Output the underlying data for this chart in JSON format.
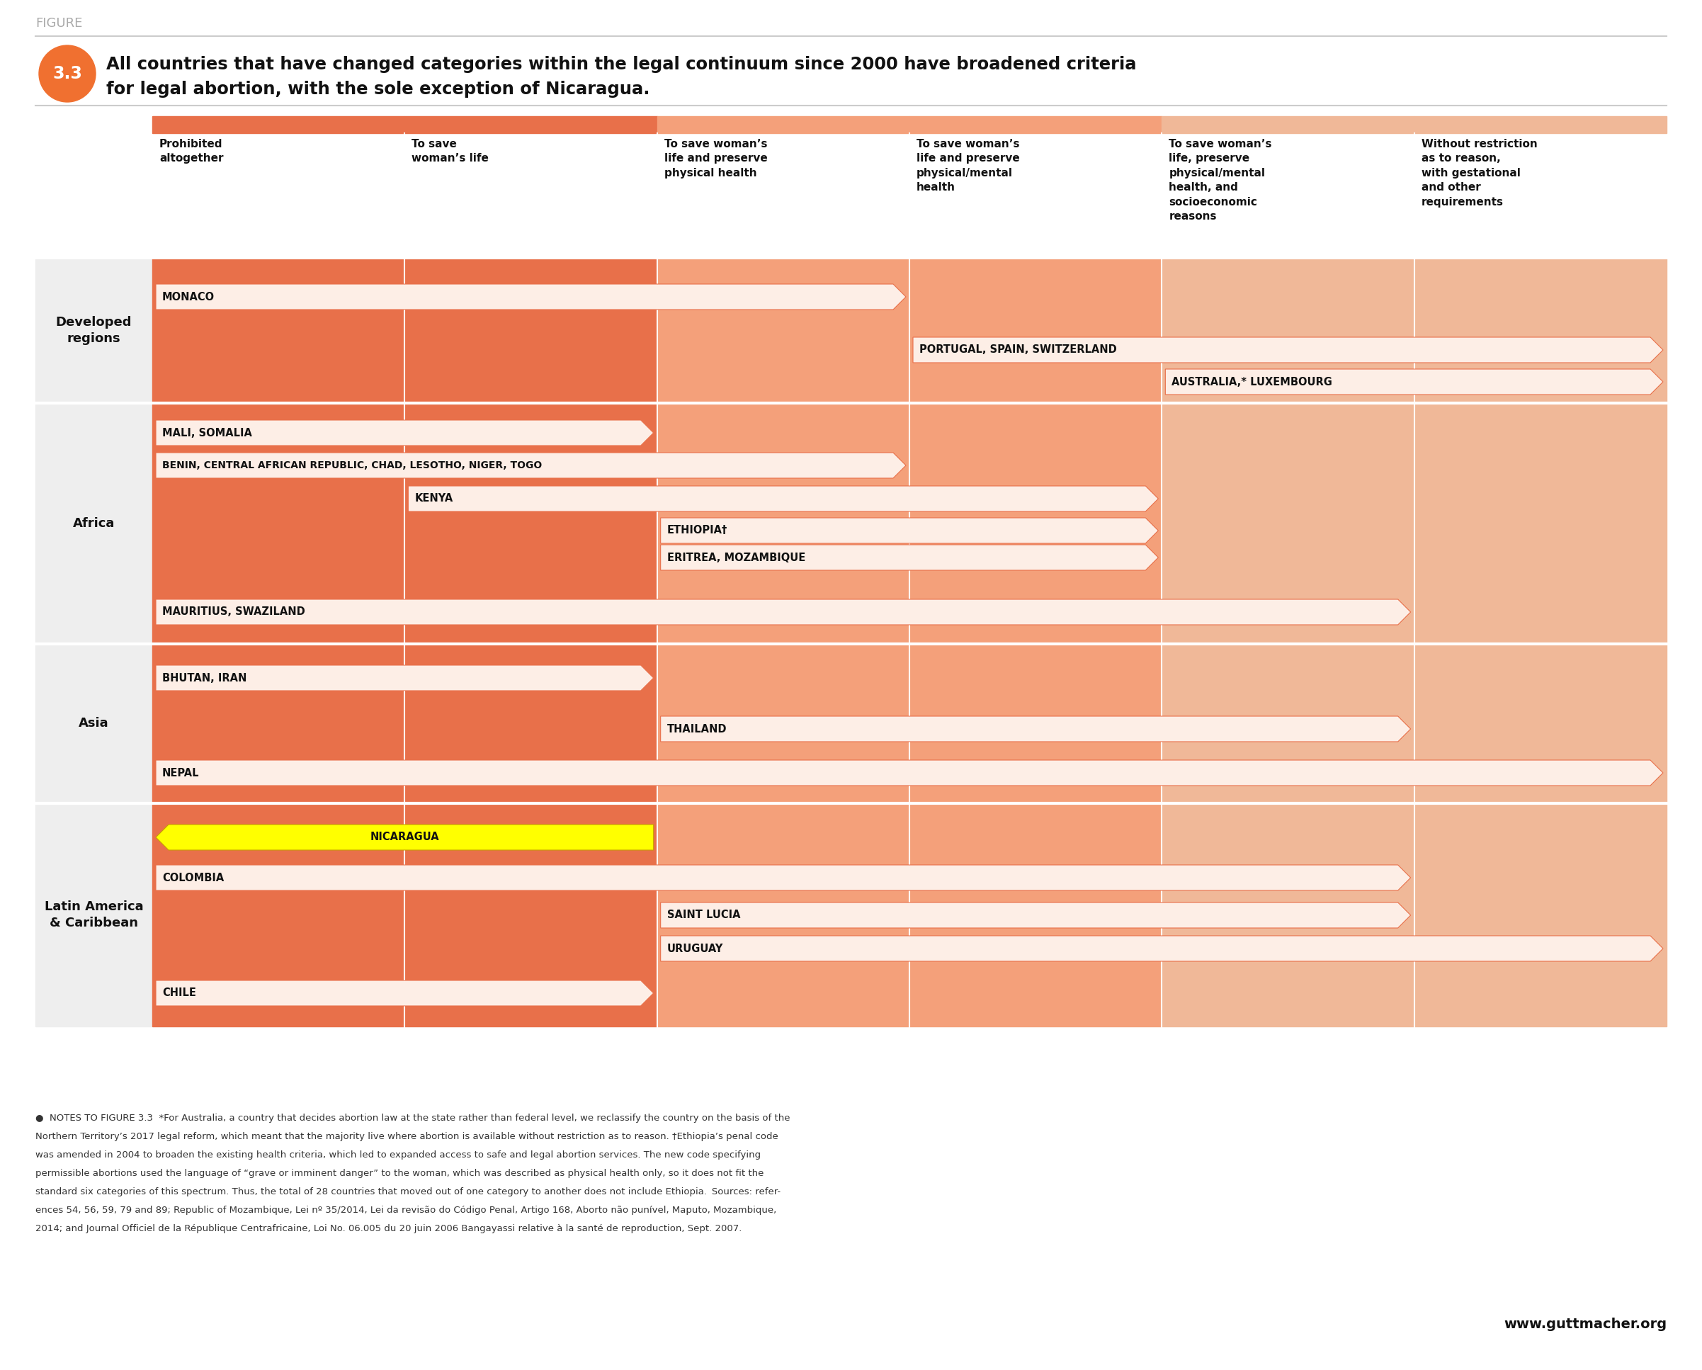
{
  "figure_label": "FIGURE",
  "figure_number": "3.3",
  "title_line1": "All countries that have changed categories within the legal continuum since 2000 have broadened criteria",
  "title_line2": "for legal abortion, with the sole exception of Nicaragua.",
  "col_headers": [
    "Prohibited\naltogether",
    "To save\nwoman’s life",
    "To save woman’s\nlife and preserve\nphysical health",
    "To save woman’s\nlife and preserve\nphysical/mental\nhealth",
    "To save woman’s\nlife, preserve\nphysical/mental\nhealth, and\nsocioeconomic\nreasons",
    "Without restriction\nas to reason,\nwith gestational\nand other\nrequirements"
  ],
  "col_colors": [
    "#E8704A",
    "#E8704A",
    "#F4A07A",
    "#F4A07A",
    "#F0B898",
    "#F0B898"
  ],
  "arrow_fill": "#FDEEE6",
  "arrow_stroke": "#E8704A",
  "background_color": "#FFFFFF",
  "row_label_bg": "#EEEEEE",
  "note_text": "●  NOTES TO FIGURE 3.3  *For Australia, a country that decides abortion law at the state rather than federal level, we reclassify the country on the basis of the Northern Territory’s 2017 legal reform, which meant that the majority live where abortion is available without restriction as to reason. †Ethiopia’s penal code was amended in 2004 to broaden the existing health criteria, which led to expanded access to safe and legal abortion services. The new code specifying permissible abortions used the language of “grave or imminent danger” to the woman, which was described as physical health only, so it does not fit the standard six categories of this spectrum. Thus, the total of 28 countries that moved out of one category to another does not include Ethiopia. Sources: refer-ences 54, 56, 59, 79 and 89; Republic of Mozambique, Lei nº 35/2014, Lei da revisão do Código Penal, Artigo 168, Aborto não punível, Maputo, Mozambique, 2014; and Journal Officiel de la République Centrafricaine, Loi No. 06.005 du 20 juin 2006 Bangayassi relative à la santé de reproduction, Sept. 2007.",
  "website": "www.guttmacher.org",
  "circle_color": "#F07030",
  "separator_color": "#CCCCCC",
  "section_sep_color": "#FFFFFF"
}
